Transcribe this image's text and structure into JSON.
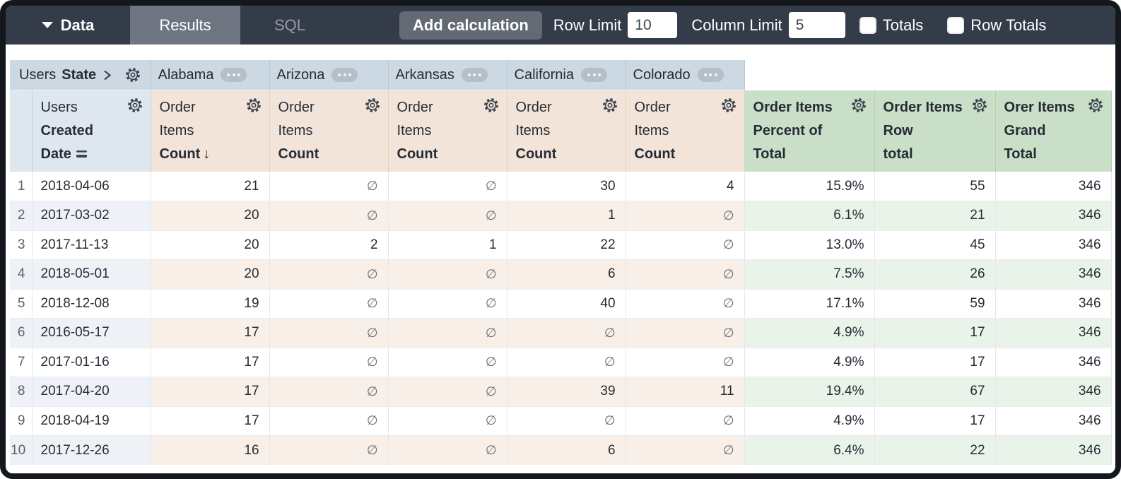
{
  "topbar": {
    "data_label": "Data",
    "results_label": "Results",
    "sql_label": "SQL",
    "add_calculation_label": "Add calculation",
    "row_limit_label": "Row Limit",
    "row_limit_value": "10",
    "column_limit_label": "Column Limit",
    "column_limit_value": "5",
    "totals_label": "Totals",
    "row_totals_label": "Row Totals"
  },
  "table": {
    "pivot": {
      "dimension_prefix": "Users",
      "dimension_name": "State",
      "values": [
        "Alabama",
        "Arizona",
        "Arkansas",
        "California",
        "Colorado"
      ]
    },
    "row_dimension": {
      "line1": "Users",
      "line2": "Created",
      "line3": "Date"
    },
    "measure_header": {
      "line1": "Order",
      "line2": "Items",
      "line3": "Count"
    },
    "sort_arrow": "↓",
    "calc_headers": [
      {
        "line1": "Order Items",
        "line2": "Percent of",
        "line3": "Total"
      },
      {
        "line1": "Order Items",
        "line2": "Row",
        "line3": "total"
      },
      {
        "line1": "Orer Items",
        "line2": "Grand",
        "line3": "Total"
      }
    ],
    "null_symbol": "∅",
    "rows": [
      {
        "idx": "1",
        "date": "2018-04-06",
        "values": [
          "21",
          "∅",
          "∅",
          "30",
          "4"
        ],
        "pct": "15.9%",
        "row_total": "55",
        "grand_total": "346"
      },
      {
        "idx": "2",
        "date": "2017-03-02",
        "values": [
          "20",
          "∅",
          "∅",
          "1",
          "∅"
        ],
        "pct": "6.1%",
        "row_total": "21",
        "grand_total": "346"
      },
      {
        "idx": "3",
        "date": "2017-11-13",
        "values": [
          "20",
          "2",
          "1",
          "22",
          "∅"
        ],
        "pct": "13.0%",
        "row_total": "45",
        "grand_total": "346"
      },
      {
        "idx": "4",
        "date": "2018-05-01",
        "values": [
          "20",
          "∅",
          "∅",
          "6",
          "∅"
        ],
        "pct": "7.5%",
        "row_total": "26",
        "grand_total": "346"
      },
      {
        "idx": "5",
        "date": "2018-12-08",
        "values": [
          "19",
          "∅",
          "∅",
          "40",
          "∅"
        ],
        "pct": "17.1%",
        "row_total": "59",
        "grand_total": "346"
      },
      {
        "idx": "6",
        "date": "2016-05-17",
        "values": [
          "17",
          "∅",
          "∅",
          "∅",
          "∅"
        ],
        "pct": "4.9%",
        "row_total": "17",
        "grand_total": "346"
      },
      {
        "idx": "7",
        "date": "2017-01-16",
        "values": [
          "17",
          "∅",
          "∅",
          "∅",
          "∅"
        ],
        "pct": "4.9%",
        "row_total": "17",
        "grand_total": "346"
      },
      {
        "idx": "8",
        "date": "2017-04-20",
        "values": [
          "17",
          "∅",
          "∅",
          "39",
          "11"
        ],
        "pct": "19.4%",
        "row_total": "67",
        "grand_total": "346"
      },
      {
        "idx": "9",
        "date": "2018-04-19",
        "values": [
          "17",
          "∅",
          "∅",
          "∅",
          "∅"
        ],
        "pct": "4.9%",
        "row_total": "17",
        "grand_total": "346"
      },
      {
        "idx": "10",
        "date": "2017-12-26",
        "values": [
          "16",
          "∅",
          "∅",
          "6",
          "∅"
        ],
        "pct": "6.4%",
        "row_total": "22",
        "grand_total": "346"
      }
    ]
  },
  "colors": {
    "topbar_bg": "#353c49",
    "active_tab_bg": "#6e7580",
    "pivot_header_bg": "#ccd9e2",
    "dimension_header_bg": "#dee7ee",
    "measure_header_bg": "#f2e4d8",
    "calc_header_bg": "#c9dfc7",
    "stripe_blue": "#eef2f6",
    "stripe_tan": "#f8f0e8",
    "stripe_green": "#eaf3e9"
  }
}
